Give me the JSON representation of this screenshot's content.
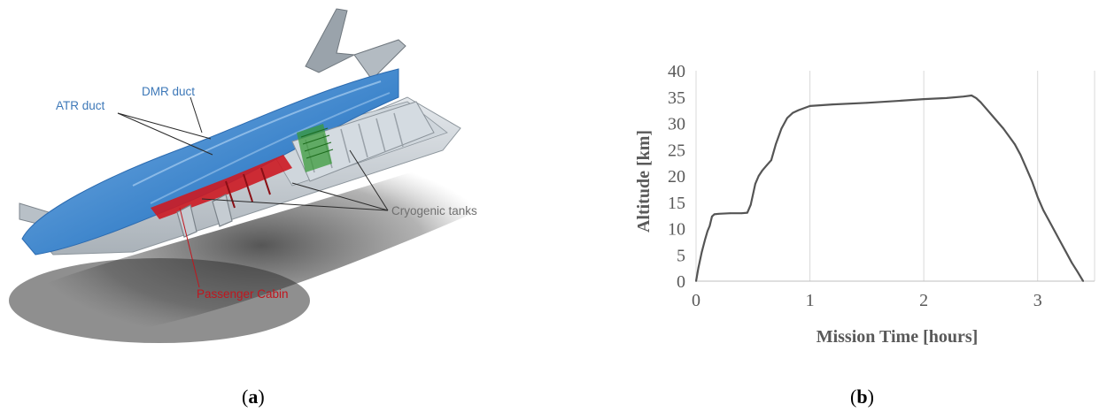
{
  "panel_a": {
    "labels": {
      "atr_duct": "ATR duct",
      "dmr_duct": "DMR duct",
      "cryogenic_tanks": "Cryogenic tanks",
      "passenger_cabin": "Passenger Cabin"
    },
    "colors": {
      "label_blue": "#3d78b8",
      "label_grey": "#707070",
      "label_red": "#c0161e",
      "hull_blue": "#4a8fd0",
      "cabin_red": "#cc1a22",
      "tank_green": "#3a9a3a"
    },
    "caption_letter": "a"
  },
  "panel_b": {
    "caption_letter": "b"
  },
  "chart_data": {
    "type": "line",
    "xlabel": "Mission Time [hours]",
    "ylabel": "Altitude [km]",
    "xlim": [
      0,
      3.5
    ],
    "ylim": [
      0,
      40
    ],
    "xticks": [
      0,
      1,
      2,
      3
    ],
    "yticks": [
      0,
      5,
      10,
      15,
      20,
      25,
      30,
      35,
      40
    ],
    "grid": "vertical",
    "series": [
      {
        "color": "#555555",
        "x": [
          0,
          0.02,
          0.05,
          0.08,
          0.1,
          0.12,
          0.14,
          0.16,
          0.2,
          0.3,
          0.4,
          0.45,
          0.48,
          0.5,
          0.52,
          0.55,
          0.58,
          0.62,
          0.66,
          0.7,
          0.75,
          0.8,
          0.85,
          0.9,
          1.0,
          1.2,
          1.5,
          1.8,
          2.0,
          2.2,
          2.35,
          2.42,
          2.46,
          2.5,
          2.6,
          2.7,
          2.8,
          2.85,
          2.9,
          2.95,
          3.0,
          3.05,
          3.1,
          3.15,
          3.2,
          3.25,
          3.3,
          3.35,
          3.4
        ],
        "y": [
          0,
          2.5,
          5.5,
          8,
          9.5,
          10.5,
          12.3,
          12.7,
          12.8,
          12.9,
          12.9,
          13,
          14.5,
          16.5,
          18.5,
          20,
          21,
          22,
          23,
          26,
          29,
          31,
          32,
          32.5,
          33.3,
          33.6,
          33.9,
          34.3,
          34.6,
          34.8,
          35.1,
          35.3,
          34.8,
          34,
          31.5,
          29,
          26,
          24,
          21.5,
          19,
          16,
          13.5,
          11.5,
          9.5,
          7.5,
          5.5,
          3.5,
          1.8,
          0
        ]
      }
    ]
  }
}
